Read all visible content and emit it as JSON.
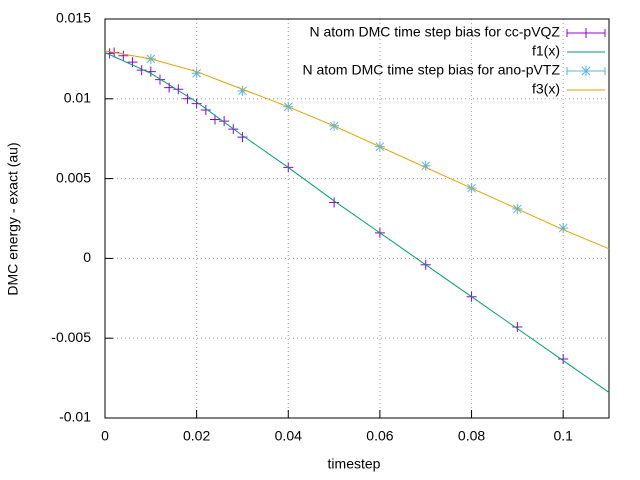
{
  "chart_data": {
    "type": "line",
    "xlabel": "timestep",
    "ylabel": "DMC energy - exact (au)",
    "xlim": [
      0,
      0.11
    ],
    "ylim": [
      -0.01,
      0.015
    ],
    "xticks": [
      0,
      0.02,
      0.04,
      0.06,
      0.08,
      0.1
    ],
    "yticks": [
      -0.01,
      -0.005,
      0,
      0.005,
      0.01,
      0.015
    ],
    "grid": true,
    "legend": "top-right",
    "series": [
      {
        "name": "N atom DMC time step bias for cc-pVQZ",
        "color": "#9400d3",
        "style": "points",
        "marker": "plus",
        "x": [
          0.001,
          0.002,
          0.004,
          0.006,
          0.008,
          0.01,
          0.012,
          0.014,
          0.016,
          0.018,
          0.02,
          0.022,
          0.024,
          0.026,
          0.028,
          0.03,
          0.04,
          0.05,
          0.06,
          0.07,
          0.08,
          0.09,
          0.1
        ],
        "values": [
          0.01285,
          0.0129,
          0.0127,
          0.0123,
          0.0118,
          0.0117,
          0.0112,
          0.0107,
          0.0106,
          0.01,
          0.0097,
          0.0093,
          0.0087,
          0.0086,
          0.0081,
          0.0076,
          0.0057,
          0.0035,
          0.0016,
          -0.0004,
          -0.0024,
          -0.0043,
          -0.0063
        ]
      },
      {
        "name": "f1(x)",
        "color": "#009e73",
        "style": "line",
        "x": [
          0,
          0.01,
          0.02,
          0.03,
          0.04,
          0.05,
          0.06,
          0.07,
          0.08,
          0.09,
          0.1,
          0.11
        ],
        "values": [
          0.0129,
          0.0116,
          0.0098,
          0.0077,
          0.0057,
          0.0036,
          0.0016,
          -0.0004,
          -0.0024,
          -0.0044,
          -0.0064,
          -0.0084
        ]
      },
      {
        "name": "N atom DMC time step bias for ano-pVTZ",
        "color": "#56b4e9",
        "style": "points",
        "marker": "star",
        "x": [
          0.01,
          0.02,
          0.03,
          0.04,
          0.05,
          0.06,
          0.07,
          0.08,
          0.09,
          0.1
        ],
        "values": [
          0.0125,
          0.0116,
          0.0105,
          0.0095,
          0.0083,
          0.007,
          0.0058,
          0.0044,
          0.0031,
          0.0019
        ]
      },
      {
        "name": "f3(x)",
        "color": "#e69f00",
        "style": "line",
        "x": [
          0,
          0.01,
          0.02,
          0.03,
          0.04,
          0.05,
          0.06,
          0.07,
          0.08,
          0.09,
          0.1,
          0.11
        ],
        "values": [
          0.013,
          0.0125,
          0.0117,
          0.0106,
          0.0095,
          0.0083,
          0.007,
          0.0057,
          0.0044,
          0.0031,
          0.0018,
          0.0006
        ]
      }
    ]
  }
}
